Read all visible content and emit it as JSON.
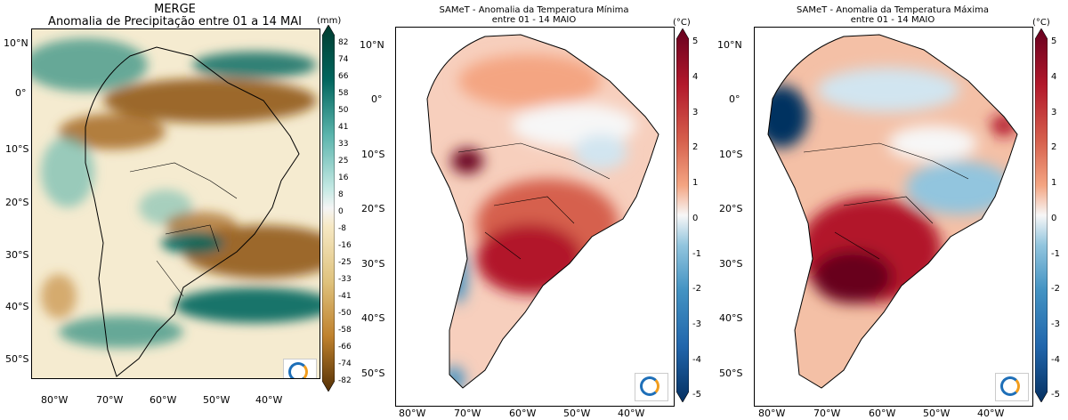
{
  "panels": [
    {
      "title_line1": "MERGE",
      "title_line2": "Anomalia de Precipitação entre 01 a 14 MAI",
      "unit": "(mm)",
      "lat_ticks": [
        "10°N",
        "0°",
        "10°S",
        "20°S",
        "30°S",
        "40°S",
        "50°S"
      ],
      "lon_ticks": [
        "80°W",
        "70°W",
        "60°W",
        "50°W",
        "40°W"
      ],
      "colorbar_ticks": [
        "82",
        "74",
        "66",
        "58",
        "50",
        "41",
        "33",
        "25",
        "16",
        "8",
        "0",
        "-8",
        "-16",
        "-25",
        "-33",
        "-41",
        "-50",
        "-58",
        "-66",
        "-74",
        "-82"
      ]
    },
    {
      "title_line1": "SAMeT - Anomalia da Temperatura Mínima",
      "title_line2": "entre 01 - 14 MAIO",
      "unit": "(°C)",
      "lat_ticks": [
        "10°N",
        "0°",
        "10°S",
        "20°S",
        "30°S",
        "40°S",
        "50°S"
      ],
      "lon_ticks": [
        "80°W",
        "70°W",
        "60°W",
        "50°W",
        "40°W"
      ],
      "colorbar_ticks": [
        "5",
        "4",
        "3",
        "2",
        "1",
        "0",
        "-1",
        "-2",
        "-3",
        "-4",
        "-5"
      ]
    },
    {
      "title_line1": "SAMeT - Anomalia da Temperatura Máxima",
      "title_line2": "entre 01 - 14 MAIO",
      "unit": "(°C)",
      "lat_ticks": [
        "10°N",
        "0°",
        "10°S",
        "20°S",
        "30°S",
        "40°S",
        "50°S"
      ],
      "lon_ticks": [
        "80°W",
        "70°W",
        "60°W",
        "50°W",
        "40°W"
      ],
      "colorbar_ticks": [
        "5",
        "4",
        "3",
        "2",
        "1",
        "0",
        "-1",
        "-2",
        "-3",
        "-4",
        "-5"
      ]
    }
  ],
  "colors": {
    "precip_wet": "#01665e",
    "precip_dry": "#8c510a",
    "temp_warm": "#67001f",
    "temp_cold": "#053061"
  },
  "icons": {
    "logo": "inmet-logo-icon"
  }
}
